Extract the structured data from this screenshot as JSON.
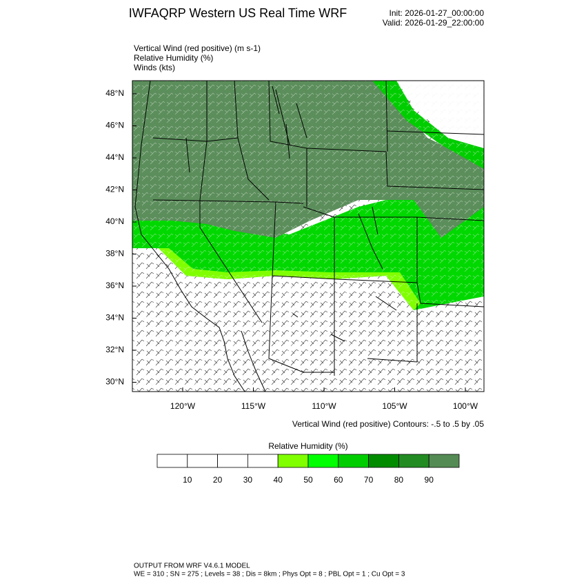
{
  "header": {
    "title": "IWFAQRP Western US Real Time WRF",
    "init": "Init: 2026-01-27_00:00:00",
    "valid": "Valid: 2026-01-29_22:00:00"
  },
  "fields": [
    "Vertical Wind (red positive)   (m s-1)",
    "Relative Humidity   (%)",
    "Winds   (kts)"
  ],
  "map": {
    "lat_labels": [
      "48°N",
      "46°N",
      "44°N",
      "42°N",
      "40°N",
      "38°N",
      "36°N",
      "34°N",
      "32°N",
      "30°N"
    ],
    "lon_labels": [
      "120°W",
      "115°W",
      "110°W",
      "105°W",
      "100°W"
    ],
    "contour_note": "Vertical Wind (red positive) Contours: -.5 to .5 by .05"
  },
  "colorbar": {
    "title": "Relative Humidity   (%)",
    "colors": [
      "#ffffff",
      "#ffffff",
      "#ffffff",
      "#ffffff",
      "#80ff00",
      "#00ff00",
      "#00cd00",
      "#008b00",
      "#228b22",
      "#548b54"
    ],
    "labels": [
      "10",
      "20",
      "30",
      "40",
      "50",
      "60",
      "70",
      "80",
      "90"
    ]
  },
  "footer": {
    "model": "OUTPUT FROM WRF V4.6.1 MODEL",
    "config": "WE = 310 ; SN = 275 ; Levels = 38 ; Dis = 8km ; Phys Opt = 8 ; PBL Opt = 1 ; Cu Opt = 3"
  }
}
